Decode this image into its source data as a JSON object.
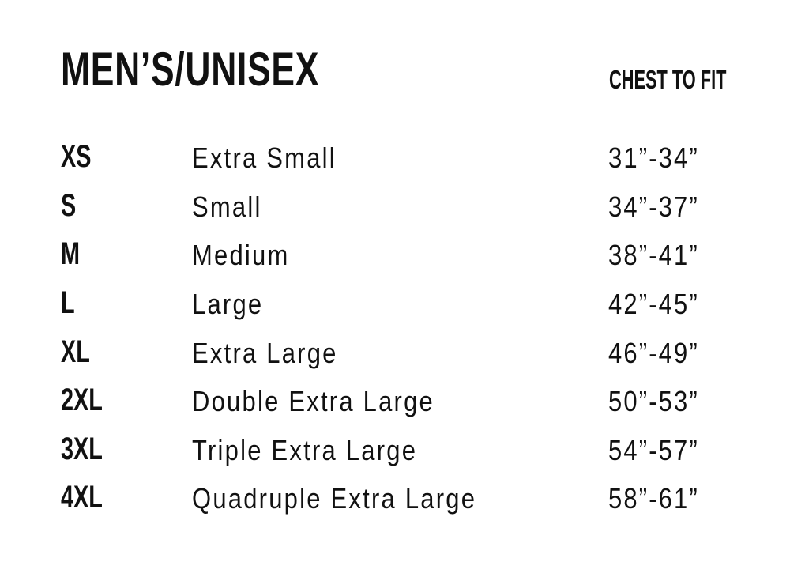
{
  "title": "MEN’S/UNISEX",
  "column_header": "CHEST TO FIT",
  "rows": [
    {
      "code": "XS",
      "name": "Extra Small",
      "chest": "31”-34”"
    },
    {
      "code": "S",
      "name": "Small",
      "chest": "34”-37”"
    },
    {
      "code": "M",
      "name": "Medium",
      "chest": "38”-41”"
    },
    {
      "code": "L",
      "name": "Large",
      "chest": "42”-45”"
    },
    {
      "code": "XL",
      "name": "Extra Large",
      "chest": "46”-49”"
    },
    {
      "code": "2XL",
      "name": "Double Extra Large",
      "chest": "50”-53”"
    },
    {
      "code": "3XL",
      "name": "Triple Extra Large",
      "chest": "54”-57”"
    },
    {
      "code": "4XL",
      "name": "Quadruple Extra Large",
      "chest": "58”-61”"
    }
  ]
}
